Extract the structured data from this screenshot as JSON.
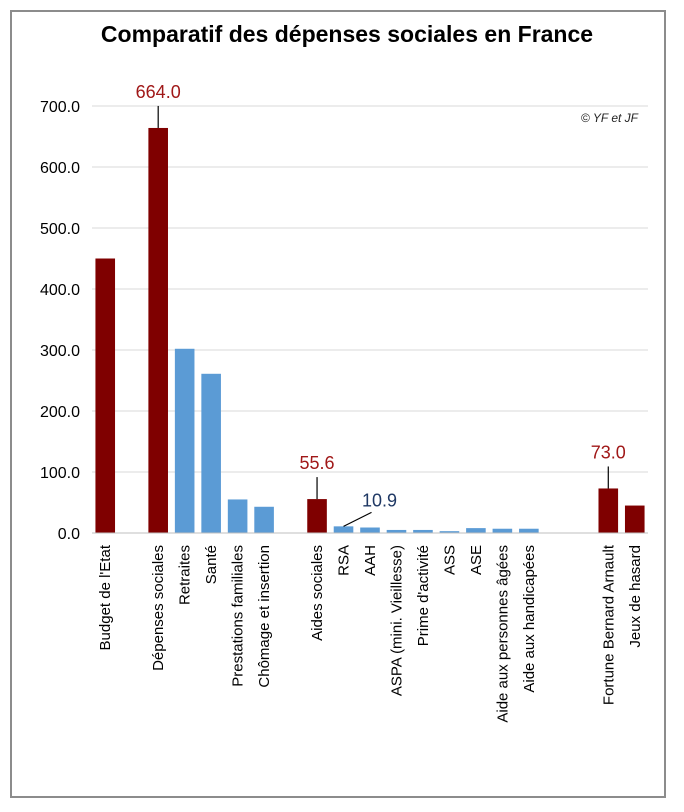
{
  "chart_data": {
    "type": "bar",
    "title": "Comparatif des dépenses sociales en France",
    "xlabel": "",
    "ylabel": "",
    "ylim": [
      0,
      700
    ],
    "yticks": [
      "0.0",
      "100.0",
      "200.0",
      "300.0",
      "400.0",
      "500.0",
      "600.0",
      "700.0"
    ],
    "ytick_values": [
      0,
      100,
      200,
      300,
      400,
      500,
      600,
      700
    ],
    "grid": true,
    "legend": "none",
    "copyright": "© YF et JF",
    "colors": {
      "dark": "#7f0000",
      "light": "#5b9bd5",
      "label_dark": "#a01818",
      "label_blue": "#1f3864"
    },
    "categories": [
      "Budget de l'Etat",
      "",
      "Dépenses sociales",
      "Retraites",
      "Santé",
      "Prestations familiales",
      "Chômage et insertion",
      "",
      "Aides sociales",
      "RSA",
      "AAH",
      "ASPA (mini. Vieillesse)",
      "Prime d'activité",
      "ASS",
      "ASE",
      "Aide aux personnes âgées",
      "Aide aux handicapées",
      "",
      "",
      "Fortune Bernard Arnault",
      "Jeux de hasard"
    ],
    "values": [
      450,
      null,
      664.0,
      302,
      261,
      55,
      43,
      null,
      55.6,
      10.9,
      9,
      5,
      5,
      3,
      8,
      7,
      7,
      null,
      null,
      73.0,
      45
    ],
    "bar_colors": [
      "dark",
      null,
      "dark",
      "light",
      "light",
      "light",
      "light",
      null,
      "dark",
      "light",
      "light",
      "light",
      "light",
      "light",
      "light",
      "light",
      "light",
      null,
      null,
      "dark",
      "dark"
    ],
    "annotations": [
      {
        "index": 2,
        "text": "664.0",
        "color": "label_dark"
      },
      {
        "index": 8,
        "text": "55.6",
        "color": "label_dark"
      },
      {
        "index": 9,
        "text": "10.9",
        "color": "label_blue"
      },
      {
        "index": 19,
        "text": "73.0",
        "color": "label_dark"
      }
    ]
  }
}
